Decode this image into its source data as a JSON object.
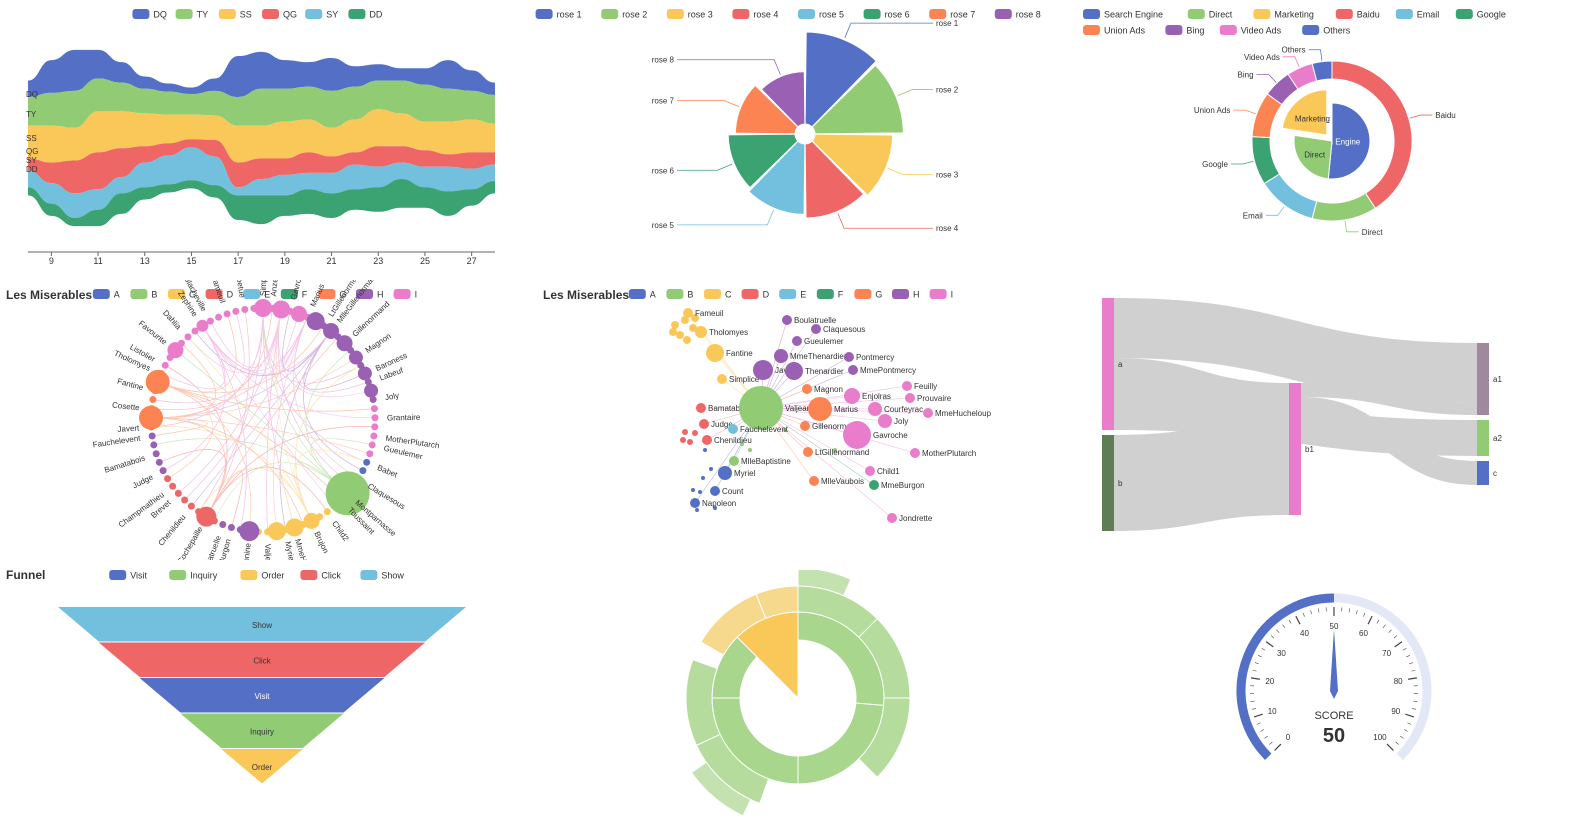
{
  "colors": [
    "#5470c6",
    "#91cc75",
    "#fac858",
    "#ee6666",
    "#73c0de",
    "#3ba272",
    "#fc8452",
    "#9a60b4",
    "#ea7ccc"
  ],
  "charts": {
    "river": {
      "type": "area",
      "legend": [
        "DQ",
        "TY",
        "SS",
        "QG",
        "SY",
        "DD"
      ],
      "x_ticks": [
        "9",
        "11",
        "13",
        "15",
        "17",
        "19",
        "21",
        "23",
        "25",
        "27"
      ],
      "x": [
        8,
        9,
        10,
        11,
        12,
        13,
        14,
        15,
        16,
        17,
        18,
        19,
        20,
        21,
        22,
        23,
        24,
        25,
        26,
        27,
        28
      ],
      "series": [
        {
          "name": "DQ",
          "values": [
            20,
            40,
            50,
            35,
            25,
            15,
            10,
            8,
            15,
            50,
            45,
            35,
            30,
            40,
            25,
            20,
            15,
            20,
            35,
            25,
            15
          ]
        },
        {
          "name": "TY",
          "values": [
            35,
            40,
            45,
            40,
            35,
            30,
            28,
            25,
            30,
            35,
            45,
            40,
            40,
            45,
            40,
            35,
            40,
            45,
            40,
            35,
            35
          ]
        },
        {
          "name": "SS",
          "values": [
            40,
            45,
            40,
            50,
            45,
            40,
            35,
            30,
            30,
            45,
            40,
            45,
            40,
            35,
            40,
            45,
            40,
            35,
            40,
            40,
            35
          ]
        },
        {
          "name": "QG",
          "values": [
            15,
            25,
            40,
            45,
            35,
            20,
            15,
            10,
            20,
            30,
            25,
            20,
            25,
            20,
            15,
            25,
            20,
            20,
            15,
            20,
            15
          ]
        },
        {
          "name": "SY",
          "values": [
            20,
            25,
            30,
            25,
            20,
            30,
            35,
            40,
            35,
            10,
            20,
            25,
            20,
            25,
            30,
            25,
            20,
            25,
            30,
            25,
            20
          ]
        },
        {
          "name": "DD",
          "values": [
            10,
            15,
            10,
            20,
            25,
            15,
            10,
            10,
            15,
            30,
            35,
            25,
            30,
            30,
            25,
            30,
            35,
            25,
            30,
            20,
            15
          ]
        }
      ],
      "side_labels": [
        "DQ",
        "TY",
        "SS",
        "QG",
        "SY",
        "DD"
      ]
    },
    "rose": {
      "type": "pie",
      "legend": [
        "rose 1",
        "rose 2",
        "rose 3",
        "rose 4",
        "rose 5",
        "rose 6",
        "rose 7",
        "rose 8"
      ],
      "values": [
        40,
        38,
        32,
        30,
        28,
        26,
        22,
        18
      ]
    },
    "nested_pie": {
      "type": "pie",
      "legend": [
        "Search Engine",
        "Direct",
        "Marketing",
        "Baidu",
        "Email",
        "Google",
        "Union Ads",
        "Bing",
        "Video Ads",
        "Others"
      ],
      "inner": [
        {
          "name": "Search Engine",
          "value": 1548
        },
        {
          "name": "Direct",
          "value": 775
        },
        {
          "name": "Marketing",
          "value": 679
        }
      ],
      "outer": [
        {
          "name": "Baidu",
          "value": 1048
        },
        {
          "name": "Direct",
          "value": 335
        },
        {
          "name": "Email",
          "value": 310
        },
        {
          "name": "Google",
          "value": 251
        },
        {
          "name": "Union Ads",
          "value": 234
        },
        {
          "name": "Bing",
          "value": 147
        },
        {
          "name": "Video Ads",
          "value": 135
        },
        {
          "name": "Others",
          "value": 102
        }
      ]
    },
    "circular_graph": {
      "type": "graph",
      "title": "Les Miserables",
      "legend": [
        "A",
        "B",
        "C",
        "D",
        "E",
        "F",
        "G",
        "H",
        "I"
      ],
      "labels_visible": [
        "Gavroche",
        "Marius",
        "LtGillenormand",
        "MlleGillenormand",
        "Gillenormand",
        "Magnon",
        "Baroness",
        "Labeuf",
        "Joly",
        "Grantaire",
        "MotherPlutarch",
        "Gueulemer",
        "Babet",
        "Claquesous",
        "Montparnasse",
        "Toussaint",
        "Child2",
        "Brujon",
        "MmeHucheloup",
        "Myriel",
        "Valjean",
        "Eponine",
        "MmeBurgon",
        "Boulatruelle",
        "Cochepaille",
        "Chenildieu",
        "Brevet",
        "Champmathieu",
        "Judge",
        "Bamatabois",
        "Fauchelevent",
        "Javert",
        "Cosette",
        "Fantine",
        "Tholomyes",
        "Listolier",
        "Favourite",
        "Dahlia",
        "Zephine",
        "Blacheville",
        "Fameuil",
        "Perpetue",
        "Simplice",
        "Anzelma"
      ]
    },
    "force_graph": {
      "type": "graph",
      "title": "Les Miserables",
      "legend": [
        "A",
        "B",
        "C",
        "D",
        "E",
        "F",
        "G",
        "H",
        "I"
      ],
      "nodes": [
        {
          "name": "Fameuil",
          "cat": 2
        },
        {
          "name": "Tholomyes",
          "cat": 2
        },
        {
          "name": "Fantine",
          "cat": 2
        },
        {
          "name": "Simplice",
          "cat": 2
        },
        {
          "name": "Boulatruelle",
          "cat": 7
        },
        {
          "name": "Claquesous",
          "cat": 7
        },
        {
          "name": "Gueulemer",
          "cat": 7
        },
        {
          "name": "MmeThenardier",
          "cat": 7
        },
        {
          "name": "Pontmercy",
          "cat": 7
        },
        {
          "name": "Javert",
          "cat": 7
        },
        {
          "name": "Thenardier",
          "cat": 7
        },
        {
          "name": "MmePontmercy",
          "cat": 7
        },
        {
          "name": "Magnon",
          "cat": 6
        },
        {
          "name": "Feuilly",
          "cat": 8
        },
        {
          "name": "Enjolras",
          "cat": 8
        },
        {
          "name": "Prouvaire",
          "cat": 8
        },
        {
          "name": "Bamatabois",
          "cat": 3
        },
        {
          "name": "Valjean",
          "cat": 1
        },
        {
          "name": "Marius",
          "cat": 6
        },
        {
          "name": "Courfeyrac",
          "cat": 8
        },
        {
          "name": "MmeHucheloup",
          "cat": 8
        },
        {
          "name": "Judge",
          "cat": 3
        },
        {
          "name": "Fauchelevent",
          "cat": 4
        },
        {
          "name": "Gillenormand",
          "cat": 6
        },
        {
          "name": "Joly",
          "cat": 8
        },
        {
          "name": "Chenildieu",
          "cat": 3
        },
        {
          "name": "Gavroche",
          "cat": 8
        },
        {
          "name": "MlleBaptistine",
          "cat": 1
        },
        {
          "name": "LtGillenormand",
          "cat": 6
        },
        {
          "name": "MotherPlutarch",
          "cat": 8
        },
        {
          "name": "Myriel",
          "cat": 0
        },
        {
          "name": "Child1",
          "cat": 8
        },
        {
          "name": "MlleVaubois",
          "cat": 6
        },
        {
          "name": "MmeBurgon",
          "cat": 5
        },
        {
          "name": "Count",
          "cat": 0
        },
        {
          "name": "Napoleon",
          "cat": 0
        },
        {
          "name": "Jondrette",
          "cat": 8
        }
      ]
    },
    "sankey": {
      "type": "sankey",
      "nodes": [
        "a",
        "b",
        "a1",
        "b1",
        "a2",
        "c"
      ],
      "links": [
        {
          "source": "a",
          "target": "a1",
          "value": 5
        },
        {
          "source": "a",
          "target": "a2",
          "value": 3
        },
        {
          "source": "b",
          "target": "b1",
          "value": 8
        },
        {
          "source": "a",
          "target": "b1",
          "value": 3
        },
        {
          "source": "b1",
          "target": "a1",
          "value": 1
        },
        {
          "source": "b1",
          "target": "c",
          "value": 2
        }
      ]
    },
    "funnel": {
      "type": "funnel",
      "title": "Funnel",
      "legend": [
        "Visit",
        "Inquiry",
        "Order",
        "Click",
        "Show"
      ],
      "stages": [
        {
          "name": "Show",
          "value": 100
        },
        {
          "name": "Click",
          "value": 80
        },
        {
          "name": "Visit",
          "value": 60
        },
        {
          "name": "Inquiry",
          "value": 40
        },
        {
          "name": "Order",
          "value": 20
        }
      ]
    },
    "sunburst": {
      "type": "sunburst"
    },
    "gauge": {
      "type": "gauge",
      "min": 0,
      "max": 100,
      "value": 50,
      "ticks": [
        "0",
        "10",
        "20",
        "30",
        "40",
        "50",
        "60",
        "70",
        "80",
        "90",
        "100"
      ],
      "label": "SCORE",
      "value_text": "50"
    }
  }
}
